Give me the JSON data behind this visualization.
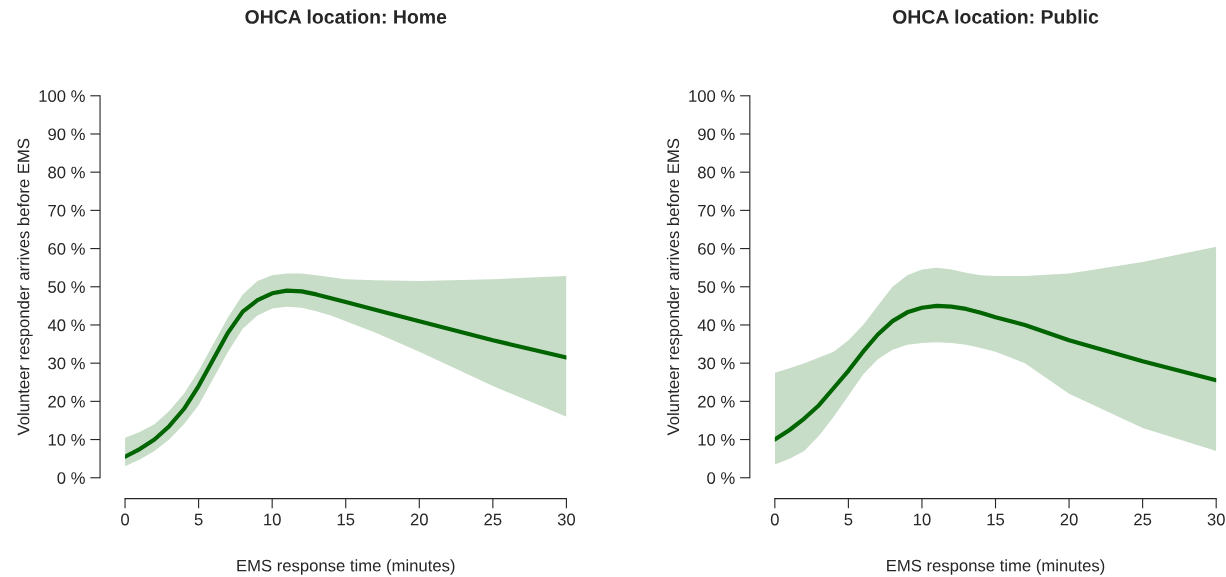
{
  "chart_data": [
    {
      "type": "line",
      "title": "OHCA location: Home",
      "xlabel": "EMS response time (minutes)",
      "ylabel": "Volunteer responder arrives before EMS",
      "xlim": [
        0,
        30
      ],
      "xticks": [
        0,
        5,
        10,
        15,
        20,
        25,
        30
      ],
      "ylim": [
        0,
        100
      ],
      "yticks": [
        {
          "value": 0,
          "label": "0 %"
        },
        {
          "value": 10,
          "label": "10 %"
        },
        {
          "value": 20,
          "label": "20 %"
        },
        {
          "value": 30,
          "label": "30 %"
        },
        {
          "value": 40,
          "label": "40 %"
        },
        {
          "value": 50,
          "label": "50 %"
        },
        {
          "value": 60,
          "label": "60 %"
        },
        {
          "value": 70,
          "label": "70 %"
        },
        {
          "value": 80,
          "label": "80 %"
        },
        {
          "value": 90,
          "label": "90 %"
        },
        {
          "value": 100,
          "label": "100 %"
        }
      ],
      "x": [
        0,
        1,
        2,
        3,
        4,
        5,
        6,
        7,
        8,
        9,
        10,
        11,
        12,
        13,
        14,
        15,
        17,
        20,
        25,
        30
      ],
      "series": [
        {
          "color": "#006400",
          "values": [
            5.5,
            7.5,
            10,
            13.5,
            18,
            24,
            31,
            38,
            43.5,
            46.5,
            48.3,
            49,
            48.8,
            48,
            47,
            46,
            44,
            41,
            36,
            31.5
          ],
          "lower": [
            3,
            4.8,
            7,
            10,
            14,
            19,
            26,
            33,
            39,
            42.5,
            44.3,
            44.8,
            44.5,
            43.6,
            42.5,
            41,
            38,
            33,
            24,
            16
          ],
          "upper": [
            10.5,
            12,
            14,
            17.5,
            22,
            28,
            35,
            42,
            48,
            51.5,
            53,
            53.5,
            53.5,
            53,
            52.5,
            52,
            51.7,
            51.5,
            52,
            52.8
          ]
        }
      ],
      "grid": false,
      "legend": false,
      "marker": "none",
      "line_style": "solid"
    },
    {
      "type": "line",
      "title": "OHCA location: Public",
      "xlabel": "EMS response time (minutes)",
      "ylabel": "Volunteer responder arrives before EMS",
      "xlim": [
        0,
        30
      ],
      "xticks": [
        0,
        5,
        10,
        15,
        20,
        25,
        30
      ],
      "ylim": [
        0,
        100
      ],
      "yticks": [
        {
          "value": 0,
          "label": "0 %"
        },
        {
          "value": 10,
          "label": "10 %"
        },
        {
          "value": 20,
          "label": "20 %"
        },
        {
          "value": 30,
          "label": "30 %"
        },
        {
          "value": 40,
          "label": "40 %"
        },
        {
          "value": 50,
          "label": "50 %"
        },
        {
          "value": 60,
          "label": "60 %"
        },
        {
          "value": 70,
          "label": "70 %"
        },
        {
          "value": 80,
          "label": "80 %"
        },
        {
          "value": 90,
          "label": "90 %"
        },
        {
          "value": 100,
          "label": "100 %"
        }
      ],
      "x": [
        0,
        1,
        2,
        3,
        4,
        5,
        6,
        7,
        8,
        9,
        10,
        11,
        12,
        13,
        14,
        15,
        17,
        20,
        25,
        30
      ],
      "series": [
        {
          "color": "#006400",
          "values": [
            10,
            12.5,
            15.5,
            19,
            23.5,
            28,
            33,
            37.5,
            41,
            43.3,
            44.5,
            45,
            44.8,
            44.2,
            43.2,
            42,
            40,
            36,
            30.5,
            25.5
          ],
          "lower": [
            3.5,
            5,
            7,
            11,
            16,
            21.5,
            27,
            31,
            33.5,
            34.8,
            35.3,
            35.5,
            35.3,
            34.8,
            34,
            33,
            30,
            22,
            13,
            7
          ],
          "upper": [
            27.5,
            28.7,
            30,
            31.5,
            33,
            36,
            40,
            45,
            50,
            53,
            54.5,
            55,
            54.5,
            53.7,
            53,
            52.8,
            52.8,
            53.5,
            56.5,
            60.5
          ]
        }
      ],
      "grid": false,
      "legend": false,
      "marker": "none",
      "line_style": "solid"
    }
  ]
}
